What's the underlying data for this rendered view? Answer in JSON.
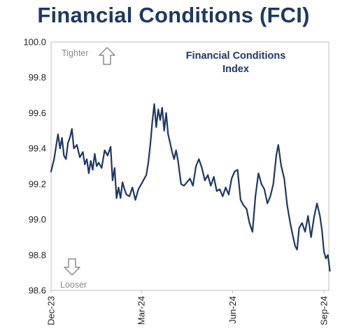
{
  "title": "Financial Conditions (FCI)",
  "chart_data": {
    "type": "line",
    "legend": "top-right",
    "series": [
      {
        "name": "Financial Conditions Index",
        "color": "#1f3864",
        "points": [
          [
            "2023-12-01",
            99.27
          ],
          [
            "2023-12-04",
            99.34
          ],
          [
            "2023-12-06",
            99.41
          ],
          [
            "2023-12-08",
            99.48
          ],
          [
            "2023-12-10",
            99.4
          ],
          [
            "2023-12-12",
            99.46
          ],
          [
            "2023-12-14",
            99.36
          ],
          [
            "2023-12-16",
            99.34
          ],
          [
            "2023-12-18",
            99.43
          ],
          [
            "2023-12-20",
            99.46
          ],
          [
            "2023-12-22",
            99.51
          ],
          [
            "2023-12-24",
            99.4
          ],
          [
            "2023-12-27",
            99.42
          ],
          [
            "2023-12-30",
            99.35
          ],
          [
            "2024-01-02",
            99.38
          ],
          [
            "2024-01-04",
            99.31
          ],
          [
            "2024-01-06",
            99.34
          ],
          [
            "2024-01-08",
            99.26
          ],
          [
            "2024-01-10",
            99.33
          ],
          [
            "2024-01-12",
            99.28
          ],
          [
            "2024-01-14",
            99.37
          ],
          [
            "2024-01-16",
            99.3
          ],
          [
            "2024-01-18",
            99.32
          ],
          [
            "2024-01-21",
            99.29
          ],
          [
            "2024-01-24",
            99.39
          ],
          [
            "2024-01-27",
            99.36
          ],
          [
            "2024-01-30",
            99.41
          ],
          [
            "2024-02-01",
            99.22
          ],
          [
            "2024-02-03",
            99.29
          ],
          [
            "2024-02-05",
            99.12
          ],
          [
            "2024-02-07",
            99.18
          ],
          [
            "2024-02-09",
            99.12
          ],
          [
            "2024-02-11",
            99.21
          ],
          [
            "2024-02-13",
            99.17
          ],
          [
            "2024-02-15",
            99.14
          ],
          [
            "2024-02-18",
            99.13
          ],
          [
            "2024-02-21",
            99.18
          ],
          [
            "2024-02-24",
            99.11
          ],
          [
            "2024-02-27",
            99.17
          ],
          [
            "2024-03-01",
            99.2
          ],
          [
            "2024-03-04",
            99.23
          ],
          [
            "2024-03-06",
            99.25
          ],
          [
            "2024-03-08",
            99.32
          ],
          [
            "2024-03-10",
            99.42
          ],
          [
            "2024-03-12",
            99.55
          ],
          [
            "2024-03-14",
            99.65
          ],
          [
            "2024-03-16",
            99.52
          ],
          [
            "2024-03-18",
            99.62
          ],
          [
            "2024-03-20",
            99.56
          ],
          [
            "2024-03-22",
            99.63
          ],
          [
            "2024-03-24",
            99.5
          ],
          [
            "2024-03-26",
            99.6
          ],
          [
            "2024-03-28",
            99.48
          ],
          [
            "2024-03-30",
            99.43
          ],
          [
            "2024-04-01",
            99.38
          ],
          [
            "2024-04-03",
            99.34
          ],
          [
            "2024-04-05",
            99.39
          ],
          [
            "2024-04-07",
            99.33
          ],
          [
            "2024-04-10",
            99.2
          ],
          [
            "2024-04-13",
            99.19
          ],
          [
            "2024-04-16",
            99.21
          ],
          [
            "2024-04-19",
            99.23
          ],
          [
            "2024-04-22",
            99.19
          ],
          [
            "2024-04-25",
            99.3
          ],
          [
            "2024-04-28",
            99.34
          ],
          [
            "2024-05-01",
            99.29
          ],
          [
            "2024-05-04",
            99.22
          ],
          [
            "2024-05-07",
            99.25
          ],
          [
            "2024-05-10",
            99.19
          ],
          [
            "2024-05-13",
            99.24
          ],
          [
            "2024-05-16",
            99.16
          ],
          [
            "2024-05-19",
            99.17
          ],
          [
            "2024-05-22",
            99.13
          ],
          [
            "2024-05-25",
            99.18
          ],
          [
            "2024-05-28",
            99.14
          ],
          [
            "2024-05-31",
            99.23
          ],
          [
            "2024-06-03",
            99.27
          ],
          [
            "2024-06-06",
            99.28
          ],
          [
            "2024-06-09",
            99.11
          ],
          [
            "2024-06-12",
            99.08
          ],
          [
            "2024-06-15",
            99.06
          ],
          [
            "2024-06-18",
            98.98
          ],
          [
            "2024-06-21",
            98.93
          ],
          [
            "2024-06-24",
            99.13
          ],
          [
            "2024-06-27",
            99.26
          ],
          [
            "2024-06-30",
            99.2
          ],
          [
            "2024-07-03",
            99.17
          ],
          [
            "2024-07-06",
            99.09
          ],
          [
            "2024-07-09",
            99.13
          ],
          [
            "2024-07-12",
            99.2
          ],
          [
            "2024-07-15",
            99.36
          ],
          [
            "2024-07-17",
            99.42
          ],
          [
            "2024-07-20",
            99.3
          ],
          [
            "2024-07-23",
            99.23
          ],
          [
            "2024-07-26",
            99.08
          ],
          [
            "2024-07-29",
            98.98
          ],
          [
            "2024-08-01",
            98.9
          ],
          [
            "2024-08-03",
            98.85
          ],
          [
            "2024-08-05",
            98.83
          ],
          [
            "2024-08-07",
            98.95
          ],
          [
            "2024-08-10",
            98.98
          ],
          [
            "2024-08-13",
            98.93
          ],
          [
            "2024-08-16",
            99.02
          ],
          [
            "2024-08-19",
            98.9
          ],
          [
            "2024-08-22",
            99.01
          ],
          [
            "2024-08-25",
            99.09
          ],
          [
            "2024-08-28",
            99.02
          ],
          [
            "2024-08-30",
            98.94
          ],
          [
            "2024-09-01",
            98.82
          ],
          [
            "2024-09-03",
            98.78
          ],
          [
            "2024-09-05",
            98.8
          ],
          [
            "2024-09-07",
            98.71
          ]
        ]
      }
    ],
    "y_ticks": [
      "100.0",
      "99.8",
      "99.6",
      "99.4",
      "99.2",
      "99.0",
      "98.8",
      "98.6"
    ],
    "ylim": [
      98.6,
      100.0
    ],
    "x_ticks": [
      {
        "label": "Dec-23",
        "date": "2023-12-01"
      },
      {
        "label": "Mar-24",
        "date": "2024-03-01"
      },
      {
        "label": "Jun-24",
        "date": "2024-06-01"
      },
      {
        "label": "Sep-24",
        "date": "2024-09-01"
      }
    ],
    "xlim": [
      "2023-12-01",
      "2024-09-01"
    ],
    "annotations": {
      "tighter": "Tighter",
      "looser": "Looser"
    },
    "grid": false
  }
}
